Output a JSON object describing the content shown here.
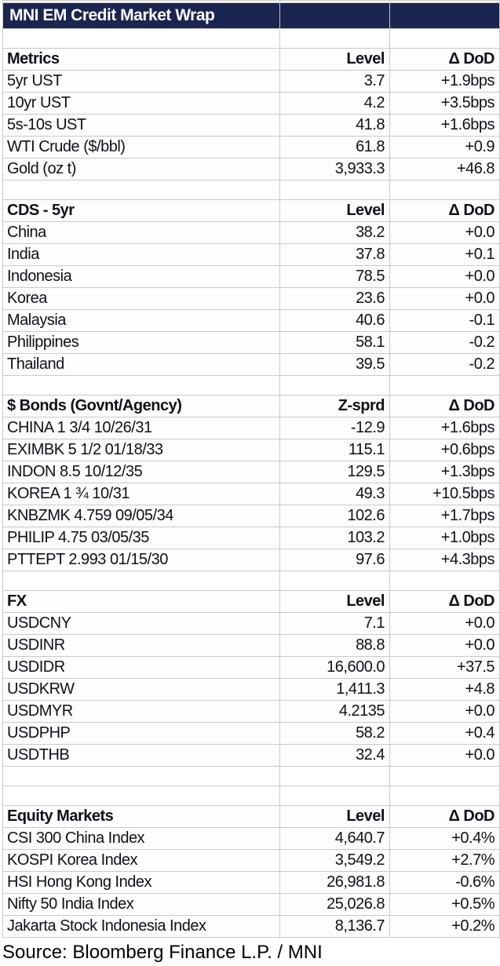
{
  "title": "MNI EM Credit Market Wrap",
  "footer": "Source: Bloomberg Finance L.P. / MNI",
  "colors": {
    "title_bar_bg": "#1a2550",
    "title_bar_text": "#ffffff",
    "grid_line": "#c9c9c9",
    "body_text": "#101018"
  },
  "sections": [
    {
      "name": "Metrics",
      "value_header": "Level",
      "change_header": "Δ DoD",
      "rows": [
        {
          "label": "5yr UST",
          "value": "3.7",
          "change": "+1.9bps"
        },
        {
          "label": "10yr UST",
          "value": "4.2",
          "change": "+3.5bps"
        },
        {
          "label": "5s-10s UST",
          "value": "41.8",
          "change": "+1.6bps"
        },
        {
          "label": "WTI Crude ($/bbl)",
          "value": "61.8",
          "change": "+0.9"
        },
        {
          "label": "Gold (oz t)",
          "value": "3,933.3",
          "change": "+46.8"
        }
      ]
    },
    {
      "name": "CDS - 5yr",
      "value_header": "Level",
      "change_header": "Δ DoD",
      "rows": [
        {
          "label": "China",
          "value": "38.2",
          "change": "+0.0"
        },
        {
          "label": "India",
          "value": "37.8",
          "change": "+0.1"
        },
        {
          "label": "Indonesia",
          "value": "78.5",
          "change": "+0.0"
        },
        {
          "label": "Korea",
          "value": "23.6",
          "change": "+0.0"
        },
        {
          "label": "Malaysia",
          "value": "40.6",
          "change": "-0.1"
        },
        {
          "label": "Philippines",
          "value": "58.1",
          "change": "-0.2"
        },
        {
          "label": "Thailand",
          "value": "39.5",
          "change": "-0.2"
        }
      ]
    },
    {
      "name": "$ Bonds (Govnt/Agency)",
      "value_header": "Z-sprd",
      "change_header": "Δ DoD",
      "rows": [
        {
          "label": "CHINA 1 3/4 10/26/31",
          "value": "-12.9",
          "change": "+1.6bps"
        },
        {
          "label": "EXIMBK 5 1/2 01/18/33",
          "value": "115.1",
          "change": "+0.6bps"
        },
        {
          "label": "INDON 8.5 10/12/35",
          "value": "129.5",
          "change": "+1.3bps"
        },
        {
          "label": "KOREA 1 ¾ 10/31",
          "value": "49.3",
          "change": "+10.5bps"
        },
        {
          "label": "KNBZMK 4.759 09/05/34",
          "value": "102.6",
          "change": "+1.7bps"
        },
        {
          "label": "PHILIP 4.75 03/05/35",
          "value": "103.2",
          "change": "+1.0bps"
        },
        {
          "label": "PTTEPT 2.993 01/15/30",
          "value": "97.6",
          "change": "+4.3bps"
        }
      ]
    },
    {
      "name": "FX",
      "value_header": "Level",
      "change_header": "Δ DoD",
      "rows": [
        {
          "label": "USDCNY",
          "value": "7.1",
          "change": "+0.0"
        },
        {
          "label": "USDINR",
          "value": "88.8",
          "change": "+0.0"
        },
        {
          "label": "USDIDR",
          "value": "16,600.0",
          "change": "+37.5"
        },
        {
          "label": "USDKRW",
          "value": "1,411.3",
          "change": "+4.8"
        },
        {
          "label": "USDMYR",
          "value": "4.2135",
          "change": "+0.0"
        },
        {
          "label": "USDPHP",
          "value": "58.2",
          "change": "+0.4"
        },
        {
          "label": "USDTHB",
          "value": "32.4",
          "change": "+0.0"
        }
      ]
    },
    {
      "name": "Equity Markets",
      "value_header": "Level",
      "change_header": "Δ DoD",
      "rows": [
        {
          "label": "CSI 300 China Index",
          "value": "4,640.7",
          "change": "+0.4%"
        },
        {
          "label": "KOSPI Korea Index",
          "value": "3,549.2",
          "change": "+2.7%"
        },
        {
          "label": "HSI Hong Kong Index",
          "value": "26,981.8",
          "change": "-0.6%"
        },
        {
          "label": "Nifty 50 India Index",
          "value": "25,026.8",
          "change": "+0.5%"
        },
        {
          "label": "Jakarta Stock Indonesia Index",
          "value": "8,136.7",
          "change": "+0.2%"
        }
      ]
    }
  ]
}
